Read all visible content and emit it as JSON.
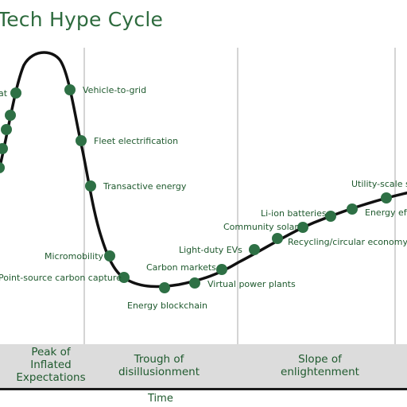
{
  "title": "Tech Hype Cycle",
  "axis": {
    "x_label": "Time"
  },
  "phases": [
    {
      "label_lines": [
        "Peak of",
        "Inflated",
        "Expectations"
      ]
    },
    {
      "label_lines": [
        "Trough of",
        "disillusionment"
      ]
    },
    {
      "label_lines": [
        "Slope of",
        "enlightenment"
      ]
    }
  ],
  "colors": {
    "curve": "#111111",
    "node": "#2e7045",
    "text": "#1f5a2e",
    "band": "#dcdcdc",
    "grid": "#d4d4d4"
  },
  "technologies": [
    {
      "label": "at"
    },
    {
      "label": "Vehicle-to-grid"
    },
    {
      "label": "Fleet electrification"
    },
    {
      "label": "Transactive energy"
    },
    {
      "label": "Micromobility"
    },
    {
      "label": "Point-source carbon capture"
    },
    {
      "label": "Energy blockchain"
    },
    {
      "label": "Virtual power plants"
    },
    {
      "label": "Carbon markets"
    },
    {
      "label": "Light-duty EVs"
    },
    {
      "label": "Community solar"
    },
    {
      "label": "Li-ion batteries"
    },
    {
      "label": "Recycling/circular economy"
    },
    {
      "label": "Energy eff"
    },
    {
      "label": "Utility-scale s"
    }
  ]
}
